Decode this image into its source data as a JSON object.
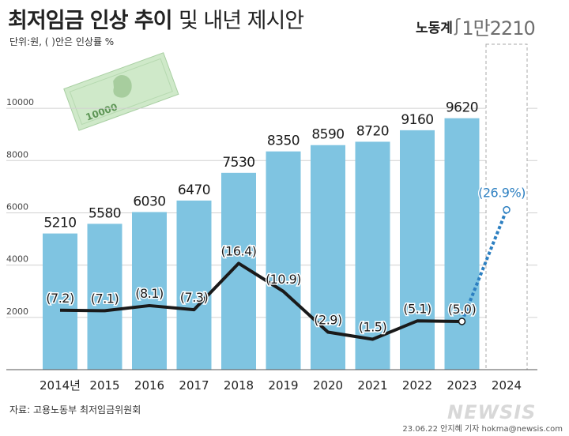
{
  "title": {
    "bold": "최저임금 인상 추이",
    "light": "및 내년 제시안"
  },
  "unit_note": "단위:원, ( )안은 인상률 %",
  "proposal": {
    "label": "노동계",
    "value": "1만2210"
  },
  "banknote_text": "10000",
  "source": "자료: 고용노동부 최저임금위원회",
  "credit": "23.06.22 안지혜 기자 hokma@newsis.com",
  "watermark": "NEWSIS",
  "colors": {
    "bar": "#7fc4e1",
    "line": "#1a1a1a",
    "proposal_line": "#2c7fc1",
    "proposal_label": "#2c7fc1",
    "grid": "#d0d0d0",
    "banknote": "#c9e6c5"
  },
  "chart_data": {
    "type": "bar",
    "categories": [
      "2014년",
      "2015",
      "2016",
      "2017",
      "2018",
      "2019",
      "2020",
      "2021",
      "2022",
      "2023",
      "2024"
    ],
    "bar_values": [
      5210,
      5580,
      6030,
      6470,
      7530,
      8350,
      8590,
      8720,
      9160,
      9620,
      null
    ],
    "bar_labels": [
      "5210",
      "5580",
      "6030",
      "6470",
      "7530",
      "8350",
      "8590",
      "8720",
      "9160",
      "9620"
    ],
    "rate_values": [
      7.2,
      7.1,
      8.1,
      7.3,
      16.4,
      10.9,
      2.9,
      1.5,
      5.1,
      5.0,
      26.9
    ],
    "rate_labels": [
      "(7.2)",
      "(7.1)",
      "(8.1)",
      "(7.3)",
      "(16.4)",
      "(10.9)",
      "(2.9)",
      "(1.5)",
      "(5.1)",
      "(5.0)",
      "(26.9%)"
    ],
    "yticks": [
      "2000",
      "4000",
      "6000",
      "8000",
      "10000"
    ],
    "ytick_values": [
      2000,
      4000,
      6000,
      8000,
      10000
    ],
    "ylim": [
      0,
      11000
    ],
    "grid": true,
    "proposal_category": "2024"
  }
}
